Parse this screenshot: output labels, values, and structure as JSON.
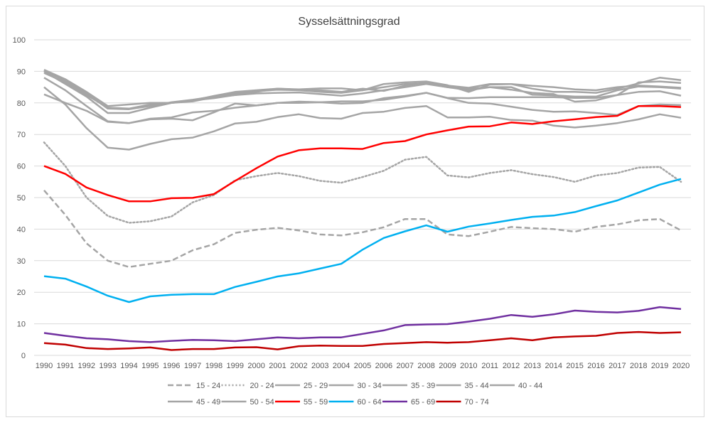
{
  "chart_data": {
    "type": "line",
    "title": "Sysselsättningsgrad",
    "xlabel": "",
    "ylabel": "",
    "ylim": [
      0,
      100
    ],
    "yticks": [
      0,
      10,
      20,
      30,
      40,
      50,
      60,
      70,
      80,
      90,
      100
    ],
    "grid": true,
    "legend_position": "bottom",
    "x": [
      1990,
      1991,
      1992,
      1993,
      1994,
      1995,
      1996,
      1997,
      1998,
      1999,
      2000,
      2001,
      2002,
      2003,
      2004,
      2005,
      2006,
      2007,
      2008,
      2009,
      2010,
      2011,
      2012,
      2013,
      2014,
      2015,
      2016,
      2017,
      2018,
      2019,
      2020
    ],
    "series": [
      {
        "name": "15 - 24",
        "color": "#a5a5a5",
        "dash": "dashed",
        "values": [
          52.3,
          44.5,
          35.5,
          30,
          28,
          29,
          30,
          33.3,
          35.2,
          38.8,
          39.8,
          40.4,
          39.6,
          38.3,
          38,
          39,
          40.6,
          43.2,
          43.2,
          38.3,
          37.8,
          39.2,
          40.7,
          40.3,
          40,
          39.2,
          40.7,
          41.5,
          42.8,
          43.2,
          39.6
        ]
      },
      {
        "name": "20 - 24",
        "color": "#a5a5a5",
        "dash": "dotted",
        "values": [
          67.5,
          60,
          50,
          44.2,
          42,
          42.5,
          44,
          48.5,
          50.8,
          55.5,
          56.8,
          57.8,
          56.8,
          55.3,
          54.7,
          56.5,
          58.5,
          62,
          62.9,
          57,
          56.4,
          57.8,
          58.7,
          57.4,
          56.5,
          55,
          57,
          57.8,
          59.5,
          59.7,
          55
        ]
      },
      {
        "name": "25 - 29",
        "color": "#a5a5a5",
        "dash": "solid",
        "values": [
          85,
          79.5,
          72,
          65.8,
          65.2,
          67,
          68.5,
          69,
          71,
          73.5,
          74,
          75.5,
          76.4,
          75.2,
          75,
          76.8,
          77.2,
          78.4,
          79,
          75.4,
          75.4,
          75.6,
          74.6,
          74.4,
          72.8,
          72.2,
          72.8,
          73.6,
          74.8,
          76.4,
          75.3
        ]
      },
      {
        "name": "30 - 34",
        "color": "#a5a5a5",
        "dash": "solid",
        "values": [
          82.7,
          80,
          77.5,
          74,
          73.6,
          75,
          75.4,
          77,
          77.5,
          78.5,
          79.2,
          80,
          80,
          80.2,
          80.5,
          80.5,
          81,
          82,
          83.2,
          81.5,
          80,
          79.8,
          78.8,
          77.8,
          77.2,
          77.3,
          76.8,
          76.2,
          79,
          79.5,
          79.3
        ]
      },
      {
        "name": "35 - 39",
        "color": "#a5a5a5",
        "dash": "solid",
        "values": [
          88,
          84,
          79,
          74.2,
          73.6,
          74.8,
          75,
          74.5,
          77,
          79.8,
          79.2,
          80,
          80.4,
          80.2,
          79.8,
          80,
          81.5,
          82.2,
          83.2,
          81.6,
          81.5,
          81.8,
          81.8,
          81.8,
          81.8,
          81.6,
          81.6,
          82.5,
          83.5,
          83.7,
          82.3
        ]
      },
      {
        "name": "35 - 44",
        "color": "#a5a5a5",
        "dash": "solid",
        "values": [
          90,
          86,
          82,
          76.8,
          76.8,
          78.5,
          80,
          80.8,
          81.5,
          82.5,
          83,
          83.2,
          83.3,
          82.8,
          82.3,
          83,
          84,
          85,
          86,
          85,
          84,
          85,
          85,
          82.6,
          82.4,
          82,
          82,
          84,
          85.2,
          85,
          84.5
        ]
      },
      {
        "name": "40 - 44",
        "color": "#a5a5a5",
        "dash": "solid",
        "values": [
          90.3,
          87,
          83,
          78.2,
          78,
          79,
          80.2,
          81,
          82,
          83,
          83.7,
          84.2,
          84,
          83.5,
          83.2,
          84,
          86,
          86.5,
          86.8,
          85.6,
          83.5,
          85.8,
          86,
          84.5,
          83.5,
          83.5,
          83.2,
          84.5,
          86.2,
          88,
          87.2
        ]
      },
      {
        "name": "45 - 49",
        "color": "#a5a5a5",
        "dash": "solid",
        "values": [
          90.5,
          87.5,
          83.5,
          79,
          79.5,
          80,
          80,
          80.8,
          82.2,
          83.5,
          84,
          84.5,
          84.3,
          84.6,
          84.6,
          84,
          85,
          86,
          86.2,
          85,
          84.5,
          85,
          84.2,
          83.2,
          82.8,
          80.4,
          80.8,
          82.5,
          86.5,
          86.8,
          86.3
        ]
      },
      {
        "name": "50 - 54",
        "color": "#a5a5a5",
        "dash": "solid",
        "values": [
          89.5,
          86.5,
          82.5,
          78.5,
          78.2,
          79.5,
          80,
          80.5,
          81.8,
          82.5,
          83.5,
          84.5,
          84.2,
          84,
          83.5,
          84.5,
          83.8,
          85.5,
          86.5,
          85.5,
          84.8,
          86,
          86,
          85.4,
          85,
          84.3,
          84,
          85,
          85.5,
          85.2,
          84.8
        ]
      },
      {
        "name": "55 - 59",
        "color": "#ff0000",
        "dash": "solid",
        "values": [
          60,
          57.5,
          53.2,
          50.8,
          48.8,
          48.8,
          49.8,
          49.9,
          51.1,
          55.3,
          59.3,
          63,
          65,
          65.6,
          65.6,
          65.4,
          67.3,
          67.9,
          70,
          71.3,
          72.5,
          72.6,
          73.8,
          73.3,
          74.2,
          74.8,
          75.5,
          75.9,
          79,
          79,
          78.7
        ]
      },
      {
        "name": "60 - 64",
        "color": "#00b0f0",
        "dash": "solid",
        "values": [
          25.1,
          24.3,
          21.8,
          18.9,
          16.9,
          18.7,
          19.2,
          19.4,
          19.4,
          21.7,
          23.3,
          25,
          26,
          27.5,
          29,
          33.5,
          37.2,
          39.3,
          41.2,
          39.2,
          40.8,
          41.8,
          42.9,
          43.9,
          44.3,
          45.4,
          47.3,
          49.1,
          51.6,
          54.1,
          55.9
        ]
      },
      {
        "name": "65 - 69",
        "color": "#7030a0",
        "dash": "solid",
        "values": [
          7.1,
          6.2,
          5.4,
          5.1,
          4.5,
          4.2,
          4.6,
          4.9,
          4.8,
          4.5,
          5.1,
          5.7,
          5.4,
          5.7,
          5.7,
          6.8,
          7.9,
          9.6,
          9.8,
          9.9,
          10.7,
          11.6,
          12.8,
          12.2,
          13,
          14.2,
          13.8,
          13.6,
          14.1,
          15.3,
          14.7
        ]
      },
      {
        "name": "70 - 74",
        "color": "#c00000",
        "dash": "solid",
        "values": [
          3.9,
          3.4,
          2.3,
          2,
          2.2,
          2.5,
          1.7,
          2,
          2,
          2.5,
          2.6,
          1.9,
          2.9,
          3.1,
          3,
          3,
          3.6,
          3.9,
          4.2,
          4,
          4.2,
          4.8,
          5.4,
          4.8,
          5.7,
          6,
          6.2,
          7.1,
          7.4,
          7.1,
          7.3
        ]
      }
    ]
  }
}
